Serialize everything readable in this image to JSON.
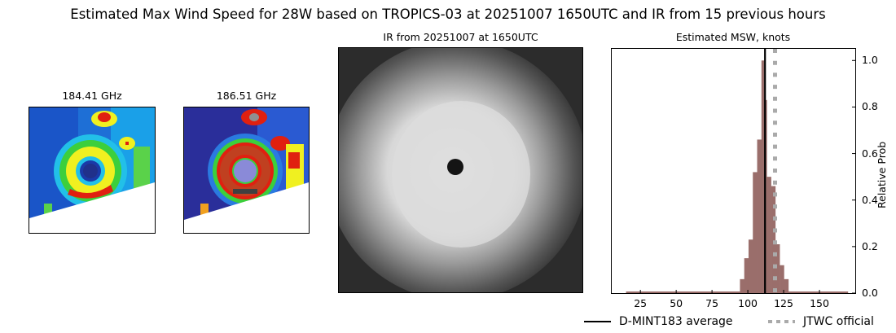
{
  "figure": {
    "suptitle": "Estimated Max Wind Speed for 28W based on TROPICS-03 at 20251007 1650UTC and IR from 15 previous hours"
  },
  "panels": {
    "mw1": {
      "title": "184.41 GHz"
    },
    "mw2": {
      "title": "186.51 GHz"
    },
    "ir": {
      "title": "IR from 20251007 at 1650UTC"
    },
    "hist": {
      "title": "Estimated MSW, knots"
    }
  },
  "legend": {
    "mean_label": "D-MINT183 average",
    "official_label": "JTWC official"
  },
  "colors": {
    "bar": "#9a6e6b",
    "mean_line": "#000000",
    "official_line": "#aaaaaa"
  },
  "chart_data": {
    "type": "bar",
    "title": "Estimated MSW, knots",
    "xlabel": "",
    "ylabel": "Relative Prob",
    "xlim": [
      5,
      175
    ],
    "ylim": [
      0,
      1.05
    ],
    "xticks": [
      25,
      50,
      75,
      100,
      125,
      150
    ],
    "yticks": [
      0.0,
      0.2,
      0.4,
      0.6,
      0.8,
      1.0
    ],
    "ytick_labels": [
      "0.0",
      "0.2",
      "0.4",
      "0.6",
      "0.8",
      "1.0"
    ],
    "y_axis_position": "right",
    "bin_edges": [
      94.5,
      97.5,
      100.5,
      103.5,
      106.5,
      109.5,
      111.3,
      113.2,
      116.2,
      119.2,
      122.2,
      125.2,
      128.3
    ],
    "values": [
      0.06,
      0.15,
      0.23,
      0.52,
      0.66,
      1.0,
      0.83,
      0.5,
      0.46,
      0.21,
      0.12,
      0.06
    ],
    "baseline_range": [
      15,
      170
    ],
    "vlines": [
      {
        "name": "D-MINT183 average",
        "x": 112,
        "style": "solid",
        "color": "#000000"
      },
      {
        "name": "JTWC official",
        "x": 119,
        "style": "dotted",
        "color": "#aaaaaa"
      }
    ],
    "legend_position": "below"
  }
}
